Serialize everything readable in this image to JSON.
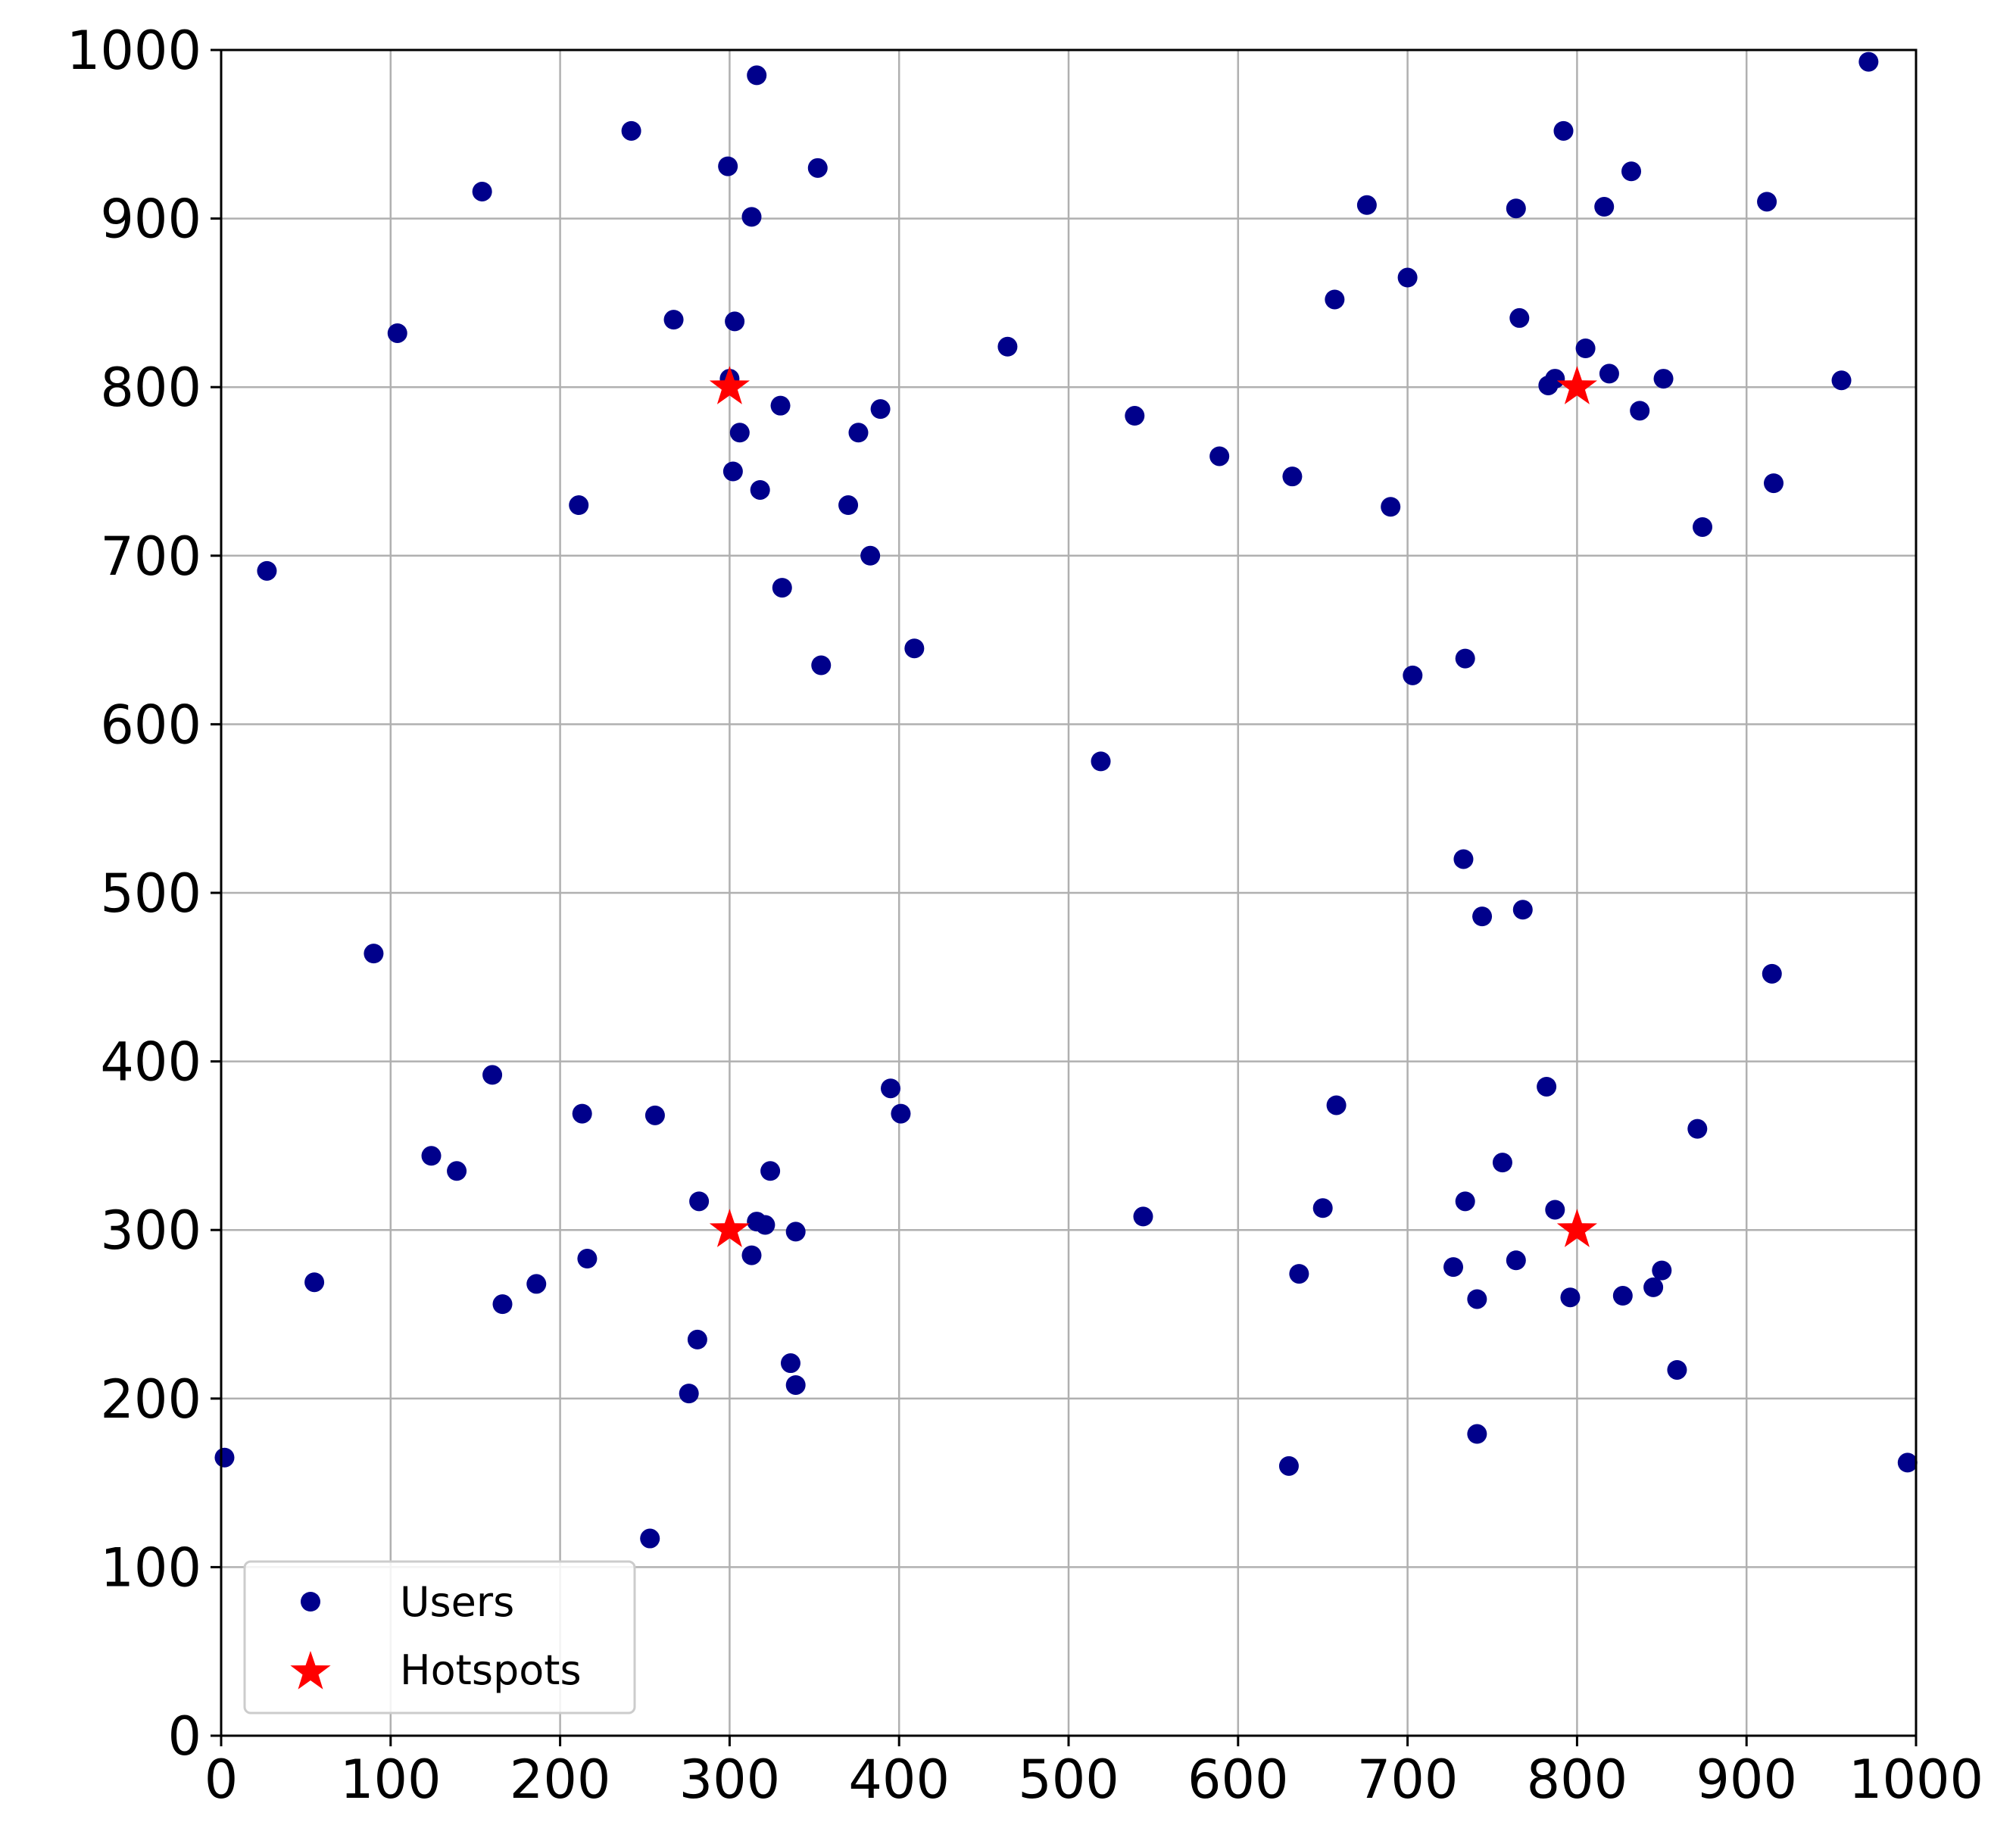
{
  "chart_data": {
    "type": "scatter",
    "xlim": [
      0,
      1000
    ],
    "ylim": [
      0,
      1000
    ],
    "xticks": [
      "0",
      "100",
      "200",
      "300",
      "400",
      "500",
      "600",
      "700",
      "800",
      "900",
      "1000"
    ],
    "yticks": [
      "0",
      "100",
      "200",
      "300",
      "400",
      "500",
      "600",
      "700",
      "800",
      "900",
      "1000"
    ],
    "grid": true,
    "legend_position": "lower-left",
    "series": [
      {
        "name": "Users",
        "marker": "circle",
        "color": "#00008b",
        "points": [
          [
            972,
            993
          ],
          [
            316,
            985
          ],
          [
            242,
            952
          ],
          [
            792,
            952
          ],
          [
            299,
            931
          ],
          [
            352,
            930
          ],
          [
            832,
            928
          ],
          [
            154,
            916
          ],
          [
            912,
            910
          ],
          [
            676,
            908
          ],
          [
            816,
            907
          ],
          [
            764,
            906
          ],
          [
            313,
            901
          ],
          [
            700,
            865
          ],
          [
            657,
            852
          ],
          [
            766,
            841
          ],
          [
            267,
            840
          ],
          [
            303,
            839
          ],
          [
            104,
            832
          ],
          [
            464,
            824
          ],
          [
            805,
            823
          ],
          [
            819,
            808
          ],
          [
            300,
            805
          ],
          [
            851,
            805
          ],
          [
            956,
            804
          ],
          [
            787,
            805
          ],
          [
            783,
            801
          ],
          [
            330,
            789
          ],
          [
            389,
            787
          ],
          [
            837,
            786
          ],
          [
            539,
            783
          ],
          [
            306,
            773
          ],
          [
            376,
            773
          ],
          [
            589,
            759
          ],
          [
            302,
            750
          ],
          [
            632,
            747
          ],
          [
            916,
            743
          ],
          [
            318,
            739
          ],
          [
            211,
            730
          ],
          [
            370,
            730
          ],
          [
            690,
            729
          ],
          [
            874,
            717
          ],
          [
            383,
            700
          ],
          [
            27,
            691
          ],
          [
            331,
            681
          ],
          [
            409,
            645
          ],
          [
            734,
            639
          ],
          [
            354,
            635
          ],
          [
            703,
            629
          ],
          [
            519,
            578
          ],
          [
            733,
            520
          ],
          [
            744,
            486
          ],
          [
            768,
            490
          ],
          [
            90,
            464
          ],
          [
            915,
            452
          ],
          [
            160,
            392
          ],
          [
            395,
            384
          ],
          [
            782,
            385
          ],
          [
            658,
            374
          ],
          [
            401,
            369
          ],
          [
            213,
            369
          ],
          [
            256,
            368
          ],
          [
            871,
            360
          ],
          [
            124,
            344
          ],
          [
            756,
            340
          ],
          [
            139,
            335
          ],
          [
            324,
            335
          ],
          [
            282,
            317
          ],
          [
            734,
            317
          ],
          [
            650,
            313
          ],
          [
            787,
            312
          ],
          [
            544,
            308
          ],
          [
            316,
            305
          ],
          [
            321,
            303
          ],
          [
            339,
            299
          ],
          [
            216,
            283
          ],
          [
            313,
            285
          ],
          [
            764,
            282
          ],
          [
            727,
            278
          ],
          [
            850,
            276
          ],
          [
            636,
            274
          ],
          [
            55,
            269
          ],
          [
            186,
            268
          ],
          [
            845,
            266
          ],
          [
            827,
            261
          ],
          [
            796,
            260
          ],
          [
            741,
            259
          ],
          [
            166,
            256
          ],
          [
            281,
            235
          ],
          [
            336,
            221
          ],
          [
            859,
            217
          ],
          [
            339,
            208
          ],
          [
            276,
            203
          ],
          [
            741,
            179
          ],
          [
            2,
            165
          ],
          [
            995,
            162
          ],
          [
            630,
            160
          ],
          [
            253,
            117
          ]
        ]
      },
      {
        "name": "Hotspots",
        "marker": "star",
        "color": "#ff0000",
        "points": [
          [
            300,
            800
          ],
          [
            800,
            800
          ],
          [
            300,
            300
          ],
          [
            800,
            300
          ]
        ]
      }
    ]
  }
}
